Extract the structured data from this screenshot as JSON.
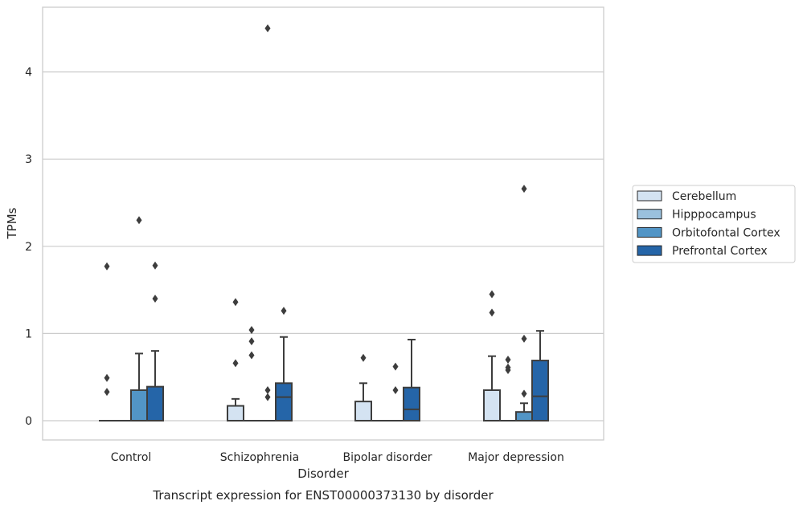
{
  "caption": "Transcript expression for ENST00000373130 by disorder",
  "chart_data": {
    "type": "box",
    "xlabel": "Disorder",
    "ylabel": "TPMs",
    "categories": [
      "Control",
      "Schizophrenia",
      "Bipolar disorder",
      "Major depression"
    ],
    "ylim": [
      -0.22,
      4.75
    ],
    "yticks": [
      0,
      1,
      2,
      3,
      4
    ],
    "grid": "horizontal",
    "legend_position": "right",
    "series": [
      {
        "name": "Cerebellum",
        "color": "#d4e3f2",
        "boxes": [
          {
            "q1": 0,
            "median": 0,
            "q3": 0,
            "whisker_low": 0,
            "whisker_high": 0,
            "outliers": [
              0.33,
              0.49,
              1.77
            ]
          },
          {
            "q1": 0,
            "median": 0,
            "q3": 0.17,
            "whisker_low": 0,
            "whisker_high": 0.25,
            "outliers": [
              0.66,
              1.36
            ]
          },
          {
            "q1": 0,
            "median": 0,
            "q3": 0.22,
            "whisker_low": 0,
            "whisker_high": 0.43,
            "outliers": [
              0.72
            ]
          },
          {
            "q1": 0,
            "median": 0,
            "q3": 0.35,
            "whisker_low": 0,
            "whisker_high": 0.74,
            "outliers": [
              1.24,
              1.45
            ]
          }
        ]
      },
      {
        "name": "Hipppocampus",
        "color": "#9ac1de",
        "boxes": [
          {
            "q1": 0,
            "median": 0,
            "q3": 0,
            "whisker_low": 0,
            "whisker_high": 0,
            "outliers": []
          },
          {
            "q1": 0,
            "median": 0,
            "q3": 0,
            "whisker_low": 0,
            "whisker_high": 0,
            "outliers": [
              0.75,
              0.91,
              1.04
            ]
          },
          {
            "q1": 0,
            "median": 0,
            "q3": 0,
            "whisker_low": 0,
            "whisker_high": 0,
            "outliers": []
          },
          {
            "q1": 0,
            "median": 0,
            "q3": 0,
            "whisker_low": 0,
            "whisker_high": 0,
            "outliers": [
              0.58,
              0.61,
              0.7
            ]
          }
        ]
      },
      {
        "name": "Orbitofontal Cortex",
        "color": "#5295c6",
        "boxes": [
          {
            "q1": 0,
            "median": 0,
            "q3": 0.35,
            "whisker_low": 0,
            "whisker_high": 0.77,
            "outliers": [
              2.3
            ]
          },
          {
            "q1": 0,
            "median": 0,
            "q3": 0,
            "whisker_low": 0,
            "whisker_high": 0,
            "outliers": [
              0.27,
              0.35,
              4.5
            ]
          },
          {
            "q1": 0,
            "median": 0,
            "q3": 0,
            "whisker_low": 0,
            "whisker_high": 0,
            "outliers": [
              0.35,
              0.62
            ]
          },
          {
            "q1": 0,
            "median": 0,
            "q3": 0.1,
            "whisker_low": 0,
            "whisker_high": 0.2,
            "outliers": [
              0.31,
              0.94,
              2.66
            ]
          }
        ]
      },
      {
        "name": "Prefrontal Cortex",
        "color": "#2565a8",
        "boxes": [
          {
            "q1": 0,
            "median": 0,
            "q3": 0.39,
            "whisker_low": 0,
            "whisker_high": 0.8,
            "outliers": [
              1.4,
              1.78
            ]
          },
          {
            "q1": 0,
            "median": 0.27,
            "q3": 0.43,
            "whisker_low": 0,
            "whisker_high": 0.96,
            "outliers": [
              1.26
            ]
          },
          {
            "q1": 0,
            "median": 0.13,
            "q3": 0.38,
            "whisker_low": 0,
            "whisker_high": 0.93,
            "outliers": []
          },
          {
            "q1": 0,
            "median": 0.28,
            "q3": 0.69,
            "whisker_low": 0,
            "whisker_high": 1.03,
            "outliers": []
          }
        ]
      }
    ]
  }
}
